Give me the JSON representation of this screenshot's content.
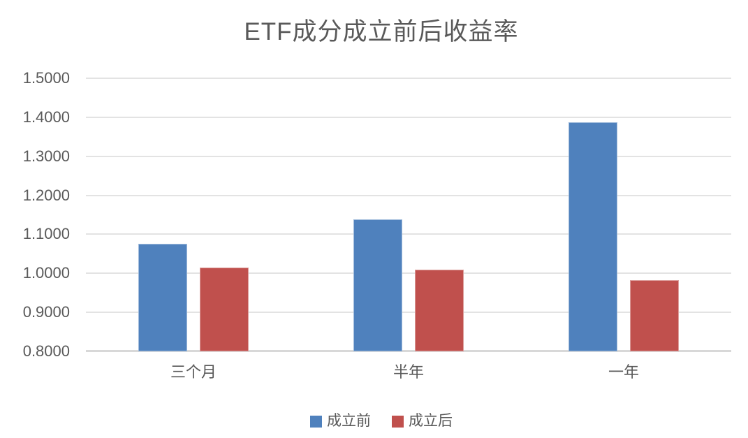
{
  "chart_data": {
    "type": "bar",
    "title": "ETF成分成立前后收益率",
    "categories": [
      "三个月",
      "半年",
      "一年"
    ],
    "series": [
      {
        "name": "成立前",
        "color": "#4F81BD",
        "values": [
          1.075,
          1.138,
          1.388
        ]
      },
      {
        "name": "成立后",
        "color": "#C0504D",
        "values": [
          1.014,
          1.009,
          0.982
        ]
      }
    ],
    "xlabel": "",
    "ylabel": "",
    "ylim": [
      0.8,
      1.5
    ],
    "ytick_step": 0.1,
    "ytick_labels": [
      "1.5000",
      "1.4000",
      "1.3000",
      "1.2000",
      "1.1000",
      "1.0000",
      "0.9000",
      "0.8000"
    ],
    "grid": true,
    "legend_position": "bottom"
  },
  "colors": {
    "series_before": "#4F81BD",
    "series_after": "#C0504D",
    "gridline": "#E3E3E3",
    "axis_baseline": "#D8D8D8",
    "text": "#595959",
    "background": "#FFFFFF"
  }
}
